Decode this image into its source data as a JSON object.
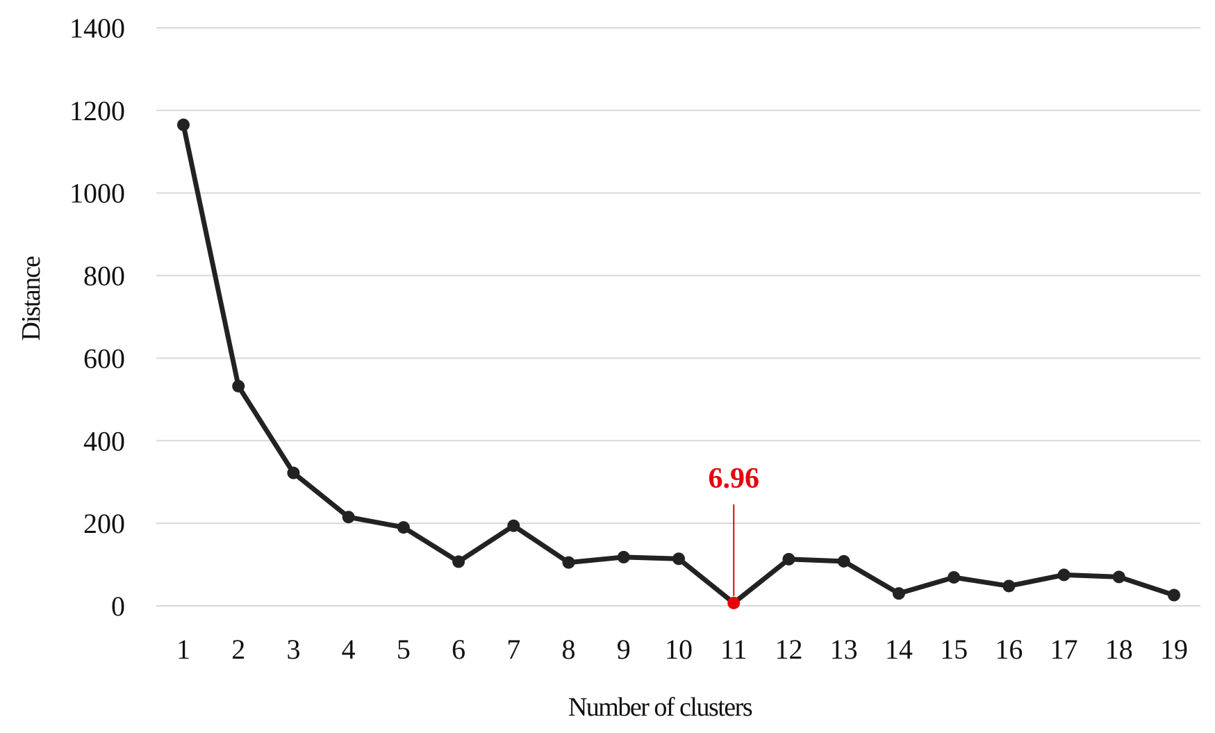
{
  "chart_data": {
    "type": "line",
    "title": "",
    "xlabel": "Number of clusters",
    "ylabel": "Distance",
    "x": [
      1,
      2,
      3,
      4,
      5,
      6,
      7,
      8,
      9,
      10,
      11,
      12,
      13,
      14,
      15,
      16,
      17,
      18,
      19
    ],
    "x_tick_labels": [
      "1",
      "2",
      "3",
      "4",
      "5",
      "6",
      "7",
      "8",
      "9",
      "10",
      "11",
      "12",
      "13",
      "14",
      "15",
      "16",
      "17",
      "18",
      "19"
    ],
    "series": [
      {
        "values": [
          1165,
          532,
          322,
          215,
          190,
          107,
          194,
          105,
          118,
          114,
          6.96,
          113,
          108,
          30,
          69,
          48,
          75,
          70,
          26
        ],
        "color": "#222222"
      }
    ],
    "ylim": [
      0,
      1400
    ],
    "y_ticks": [
      0,
      200,
      400,
      600,
      800,
      1000,
      1200,
      1400
    ],
    "y_tick_labels": [
      "0",
      "200",
      "400",
      "600",
      "800",
      "1000",
      "1200",
      "1400"
    ],
    "grid": "horizontal",
    "legend": "none",
    "annotations": [
      {
        "x": 11,
        "y": 6.96,
        "text": "6.96",
        "color": "#e8000b"
      }
    ],
    "gridline_color": "#d9d9d9"
  }
}
